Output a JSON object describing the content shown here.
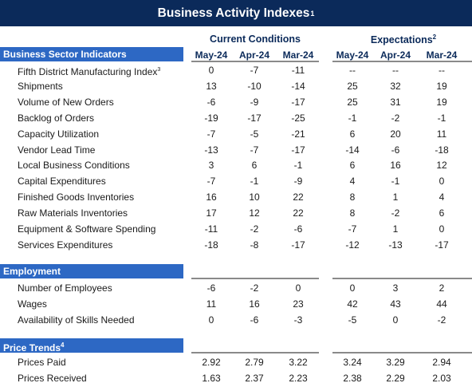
{
  "title": "Business Activity Indexes",
  "title_sup": "1",
  "groups": {
    "current": "Current Conditions",
    "expectations": "Expectations",
    "expectations_sup": "2"
  },
  "columns": {
    "current": [
      "May-24",
      "Apr-24",
      "Mar-24"
    ],
    "expectations": [
      "May-24",
      "Apr-24",
      "Mar-24"
    ]
  },
  "sections": {
    "business": {
      "label": "Business Sector Indicators",
      "rows": [
        {
          "label": "Fifth District Manufacturing Index",
          "sup": "3",
          "cur": [
            "0",
            "-7",
            "-11"
          ],
          "exp": [
            "--",
            "--",
            "--"
          ]
        },
        {
          "label": "Shipments",
          "cur": [
            "13",
            "-10",
            "-14"
          ],
          "exp": [
            "25",
            "32",
            "19"
          ]
        },
        {
          "label": "Volume of New Orders",
          "cur": [
            "-6",
            "-9",
            "-17"
          ],
          "exp": [
            "25",
            "31",
            "19"
          ]
        },
        {
          "label": "Backlog of Orders",
          "cur": [
            "-19",
            "-17",
            "-25"
          ],
          "exp": [
            "-1",
            "-2",
            "-1"
          ]
        },
        {
          "label": "Capacity Utilization",
          "cur": [
            "-7",
            "-5",
            "-21"
          ],
          "exp": [
            "6",
            "20",
            "11"
          ]
        },
        {
          "label": "Vendor Lead Time",
          "cur": [
            "-13",
            "-7",
            "-17"
          ],
          "exp": [
            "-14",
            "-6",
            "-18"
          ]
        },
        {
          "label": "Local Business Conditions",
          "cur": [
            "3",
            "6",
            "-1"
          ],
          "exp": [
            "6",
            "16",
            "12"
          ]
        },
        {
          "label": "Capital Expenditures",
          "cur": [
            "-7",
            "-1",
            "-9"
          ],
          "exp": [
            "4",
            "-1",
            "0"
          ]
        },
        {
          "label": "Finished Goods Inventories",
          "cur": [
            "16",
            "10",
            "22"
          ],
          "exp": [
            "8",
            "1",
            "4"
          ]
        },
        {
          "label": "Raw Materials Inventories",
          "cur": [
            "17",
            "12",
            "22"
          ],
          "exp": [
            "8",
            "-2",
            "6"
          ]
        },
        {
          "label": "Equipment & Software Spending",
          "cur": [
            "-11",
            "-2",
            "-6"
          ],
          "exp": [
            "-7",
            "1",
            "0"
          ]
        },
        {
          "label": "Services Expenditures",
          "cur": [
            "-18",
            "-8",
            "-17"
          ],
          "exp": [
            "-12",
            "-13",
            "-17"
          ]
        }
      ]
    },
    "employment": {
      "label": "Employment",
      "rows": [
        {
          "label": "Number of Employees",
          "cur": [
            "-6",
            "-2",
            "0"
          ],
          "exp": [
            "0",
            "3",
            "2"
          ]
        },
        {
          "label": "Wages",
          "cur": [
            "11",
            "16",
            "23"
          ],
          "exp": [
            "42",
            "43",
            "44"
          ]
        },
        {
          "label": "Availability of Skills Needed",
          "cur": [
            "0",
            "-6",
            "-3"
          ],
          "exp": [
            "-5",
            "0",
            "-2"
          ]
        }
      ]
    },
    "prices": {
      "label": "Price Trends",
      "sup": "4",
      "rows": [
        {
          "label": "Prices Paid",
          "cur": [
            "2.92",
            "2.79",
            "3.22"
          ],
          "exp": [
            "3.24",
            "3.29",
            "2.94"
          ]
        },
        {
          "label": "Prices Received",
          "cur": [
            "1.63",
            "2.37",
            "2.23"
          ],
          "exp": [
            "2.38",
            "2.29",
            "2.03"
          ]
        }
      ]
    }
  }
}
